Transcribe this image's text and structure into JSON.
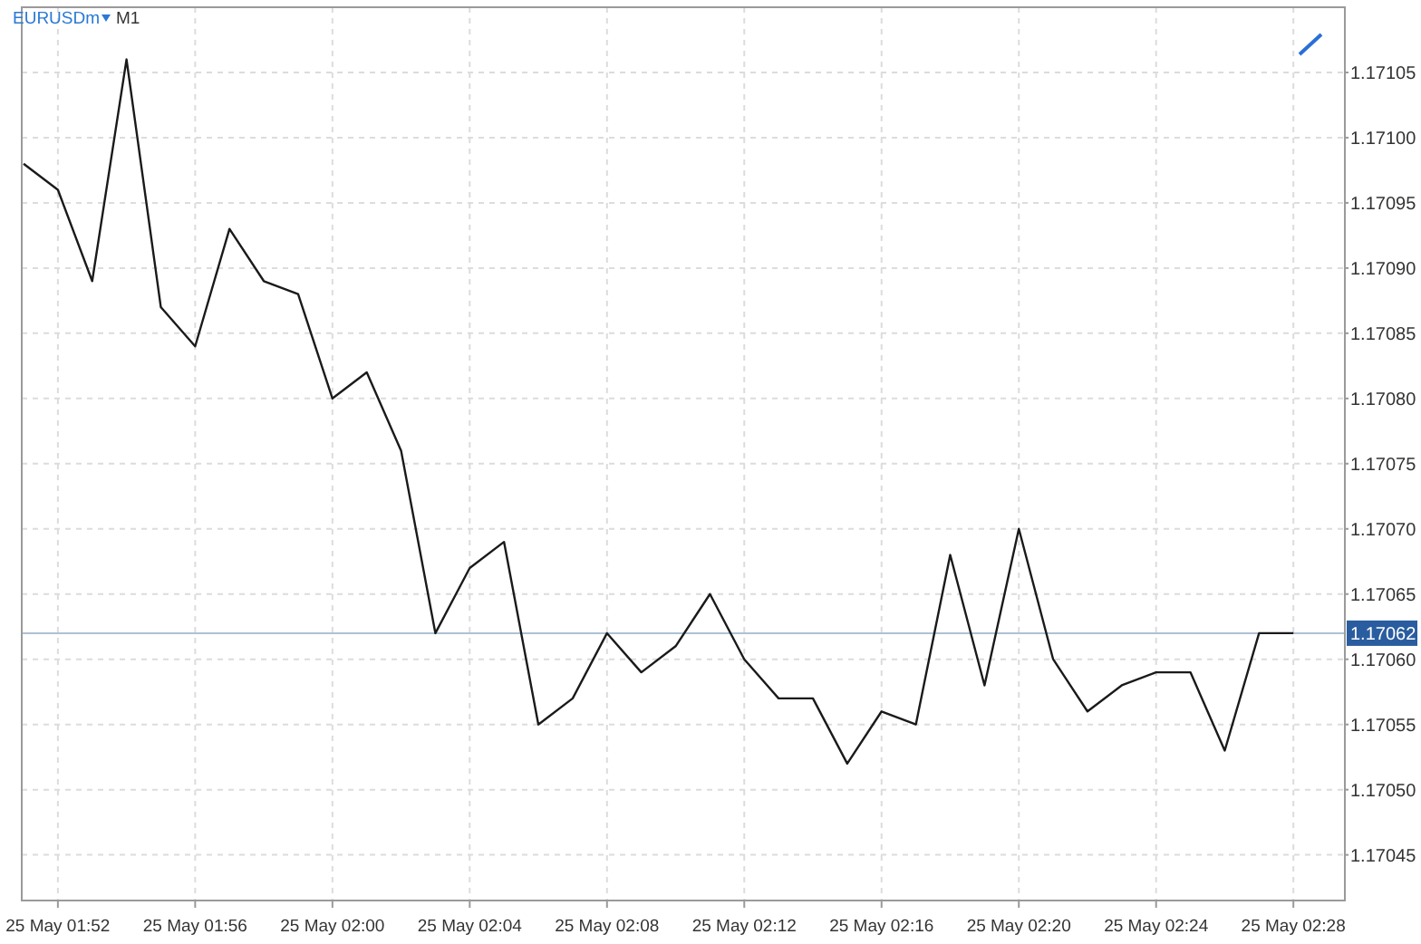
{
  "chart_data": {
    "type": "line",
    "title": "EURUSDm",
    "subtitle": "M1",
    "categories": [
      null,
      "25 May 01:52",
      null,
      null,
      null,
      "25 May 01:56",
      null,
      null,
      null,
      "25 May 02:00",
      null,
      null,
      null,
      "25 May 02:04",
      null,
      null,
      null,
      "25 May 02:08",
      null,
      null,
      null,
      "25 May 02:12",
      null,
      null,
      null,
      "25 May 02:16",
      null,
      null,
      null,
      "25 May 02:20",
      null,
      null,
      null,
      "25 May 02:24",
      null,
      null,
      null,
      "25 May 02:28"
    ],
    "series": [
      {
        "color": "#1a1a1a",
        "values": [
          1.17098,
          1.17096,
          1.17089,
          1.17106,
          1.17087,
          1.17084,
          1.17093,
          1.17089,
          1.17088,
          1.1708,
          1.17082,
          1.17076,
          1.17062,
          1.17067,
          1.17069,
          1.17055,
          1.17057,
          1.17062,
          1.17059,
          1.17061,
          1.17065,
          1.1706,
          1.17057,
          1.17057,
          1.17052,
          1.17056,
          1.17055,
          1.17068,
          1.17058,
          1.1707,
          1.1706,
          1.17056,
          1.17058,
          1.17059,
          1.17059,
          1.17053,
          1.17062,
          1.17062
        ]
      }
    ],
    "ylim": [
      1.170415,
      1.1711
    ],
    "yticks": [
      {
        "value": 1.17045,
        "label": "1.17045"
      },
      {
        "value": 1.1705,
        "label": "1.17050"
      },
      {
        "value": 1.17055,
        "label": "1.17055"
      },
      {
        "value": 1.1706,
        "label": "1.17060"
      },
      {
        "value": 1.17065,
        "label": "1.17065"
      },
      {
        "value": 1.1707,
        "label": "1.17070"
      },
      {
        "value": 1.17075,
        "label": "1.17075"
      },
      {
        "value": 1.1708,
        "label": "1.17080"
      },
      {
        "value": 1.17085,
        "label": "1.17085"
      },
      {
        "value": 1.1709,
        "label": "1.17090"
      },
      {
        "value": 1.17095,
        "label": "1.17095"
      },
      {
        "value": 1.171,
        "label": "1.17100"
      },
      {
        "value": 1.17105,
        "label": "1.17105"
      }
    ],
    "ref_lines": [
      {
        "axis": "y",
        "value": 1.17062,
        "label": "1.17062",
        "color": "#b0c0d4"
      }
    ],
    "grid": true,
    "marker": "none",
    "line_style": "solid"
  }
}
